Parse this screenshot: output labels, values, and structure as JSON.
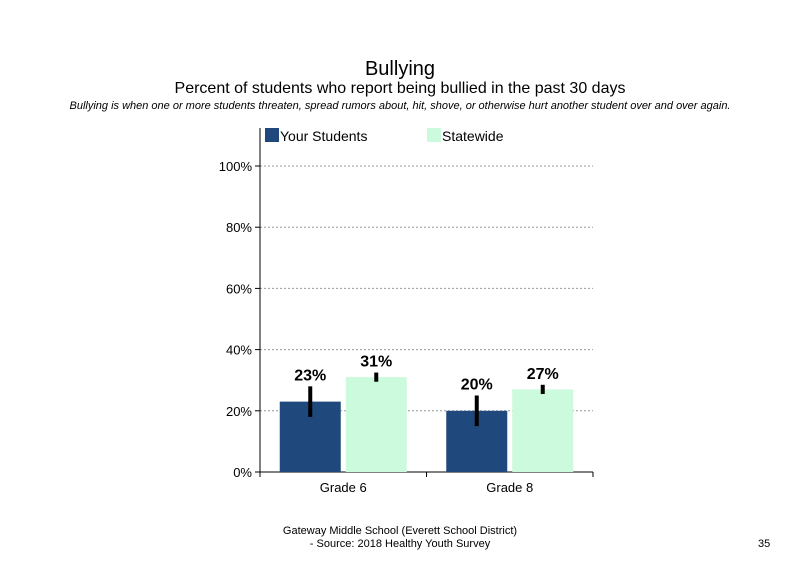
{
  "title": "Bullying",
  "subtitle": "Percent of students who report being bullied in the past 30 days",
  "note": "Bullying is when one or more students threaten, spread rumors about, hit, shove, or otherwise hurt another student over and over again.",
  "footer": {
    "line1": "Gateway Middle School (Everett School District)",
    "line2": "- Source: 2018 Healthy Youth Survey"
  },
  "page_number": "35",
  "chart_data": {
    "type": "bar",
    "categories": [
      "Grade 6",
      "Grade 8"
    ],
    "series": [
      {
        "name": "Your Students",
        "color": "#1f497d",
        "values": [
          23,
          20
        ],
        "labels": [
          "23%",
          "20%"
        ],
        "error_low": [
          18,
          15
        ],
        "error_high": [
          28,
          25
        ]
      },
      {
        "name": "Statewide",
        "color": "#ccfadc",
        "values": [
          31,
          27
        ],
        "labels": [
          "31%",
          "27%"
        ],
        "error_low": [
          29.5,
          25.5
        ],
        "error_high": [
          32.5,
          28.5
        ]
      }
    ],
    "ylim": [
      0,
      100
    ],
    "yticks": [
      "0%",
      "20%",
      "40%",
      "60%",
      "80%",
      "100%"
    ],
    "ytick_values": [
      0,
      20,
      40,
      60,
      80,
      100
    ],
    "grid": true,
    "legend_position": "top"
  }
}
